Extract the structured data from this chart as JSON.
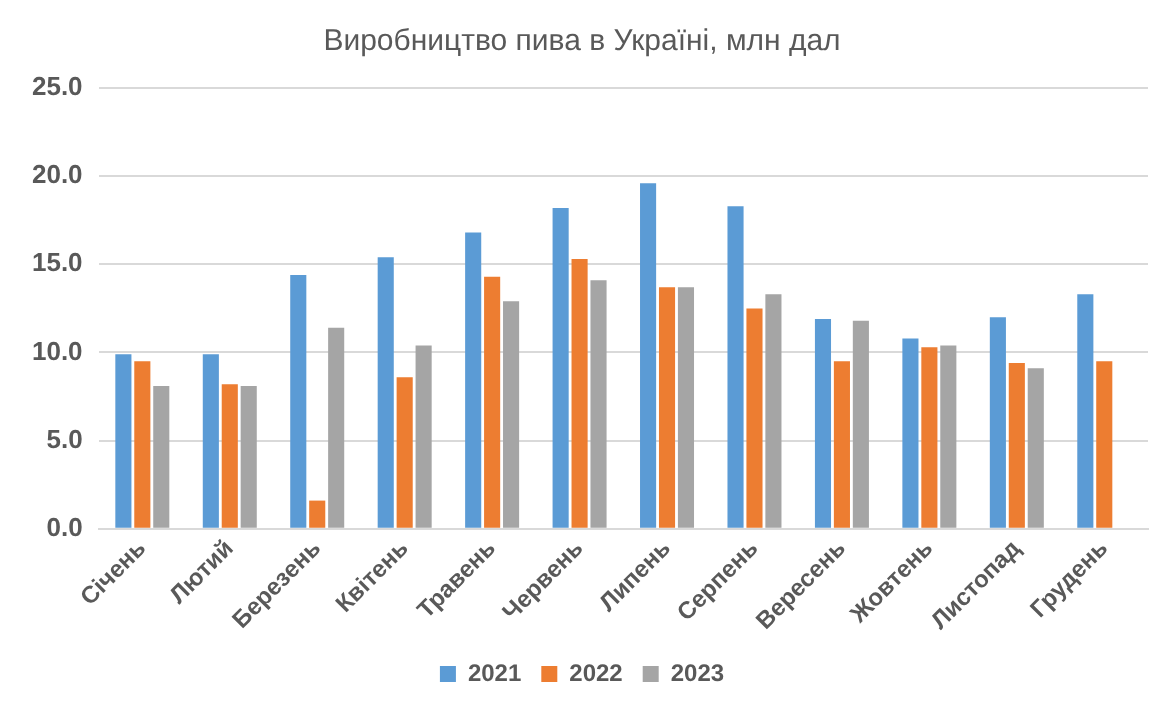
{
  "chart_data": {
    "type": "bar",
    "title": "Виробництво пива в Україні, млн дал",
    "categories": [
      "Січень",
      "Лютий",
      "Березень",
      "Квітень",
      "Травень",
      "Червень",
      "Липень",
      "Серпень",
      "Вересень",
      "Жовтень",
      "Листопад",
      "Грудень"
    ],
    "series": [
      {
        "name": "2021",
        "color": "#5b9bd5",
        "values": [
          9.9,
          9.9,
          14.4,
          15.4,
          16.8,
          18.2,
          19.6,
          18.3,
          11.9,
          10.8,
          12.0,
          13.3
        ]
      },
      {
        "name": "2022",
        "color": "#ed7d31",
        "values": [
          9.5,
          8.2,
          1.6,
          8.6,
          14.3,
          15.3,
          13.7,
          12.5,
          9.5,
          10.3,
          9.4,
          9.5
        ]
      },
      {
        "name": "2023",
        "color": "#a5a5a5",
        "values": [
          8.1,
          8.1,
          11.4,
          10.4,
          12.9,
          14.1,
          13.7,
          13.3,
          11.8,
          10.4,
          9.1,
          null
        ]
      }
    ],
    "ylim": [
      0,
      25
    ],
    "yticks": [
      {
        "value": 0,
        "label": "0.0"
      },
      {
        "value": 5,
        "label": "5.0"
      },
      {
        "value": 10,
        "label": "10.0"
      },
      {
        "value": 15,
        "label": "15.0"
      },
      {
        "value": 20,
        "label": "20.0"
      },
      {
        "value": 25,
        "label": "25.0"
      }
    ],
    "grid": "y",
    "legend": "bottom"
  }
}
